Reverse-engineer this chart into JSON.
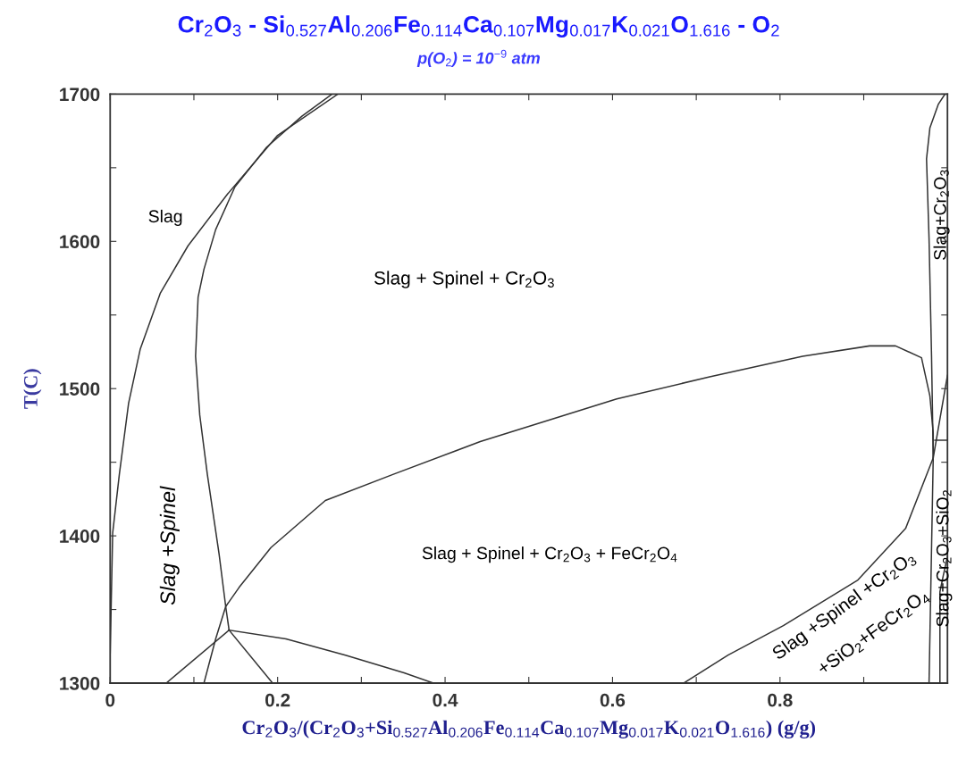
{
  "chart_data": {
    "type": "line",
    "title": "Cr$_{2}$O$_{3}$ - Si$_{0.527}$Al$_{0.206}$Fe$_{0.114}$Ca$_{0.107}$Mg$_{0.017}$K$_{0.021}$O$_{1.616}$ - O$_{2}$",
    "subtitle": "p(O$_{2}$) = 10$^{−9}$ atm",
    "xlabel": "Cr$_{2}$O$_{3}$/(Cr$_{2}$O$_{3}$+Si$_{0.527}$Al$_{0.206}$Fe$_{0.114}$Ca$_{0.107}$Mg$_{0.017}$K$_{0.021}$O$_{1.616}$) (g/g)",
    "ylabel": "T(C)",
    "xlim": [
      0,
      1
    ],
    "ylim": [
      1300,
      1700
    ],
    "xticks": [
      0,
      {
        "value": 0.1,
        "label": null
      },
      0.2,
      {
        "value": 0.3,
        "label": null
      },
      0.4,
      {
        "value": 0.5,
        "label": null
      },
      0.6,
      {
        "value": 0.7,
        "label": null
      },
      0.8,
      {
        "value": 0.9,
        "label": null
      }
    ],
    "yticks": [
      1300,
      {
        "value": 1350,
        "label": null
      },
      1400,
      {
        "value": 1450,
        "label": null
      },
      1500,
      {
        "value": 1550,
        "label": null
      },
      1600,
      {
        "value": 1650,
        "label": null
      },
      1700
    ],
    "grid": false,
    "marker": "none",
    "line_style": "solid",
    "series": [
      {
        "color": "#333333",
        "x": [
          0,
          0.003,
          0.011,
          0.022,
          0.036,
          0.06,
          0.093,
          0.14,
          0.2,
          0.272
        ],
        "values": [
          1320,
          1402,
          1442,
          1490,
          1527,
          1565,
          1597,
          1632,
          1672,
          1700
        ]
      },
      {
        "color": "#333333",
        "x": [
          0.265,
          0.229,
          0.187,
          0.149,
          0.126,
          0.112,
          0.105,
          0.102,
          0.107,
          0.116,
          0.13,
          0.138,
          0.142
        ],
        "values": [
          1700,
          1685,
          1664,
          1637,
          1608,
          1581,
          1562,
          1522,
          1482,
          1442,
          1388,
          1352,
          1336
        ]
      },
      {
        "color": "#333333",
        "x": [
          0.067,
          0.142
        ],
        "values": [
          1300,
          1336
        ]
      },
      {
        "color": "#333333",
        "x": [
          0.142,
          0.194
        ],
        "values": [
          1336,
          1300
        ]
      },
      {
        "color": "#333333",
        "x": [
          0.142,
          0.21,
          0.281,
          0.351,
          0.386
        ],
        "values": [
          1336,
          1330,
          1319,
          1307,
          1300
        ]
      },
      {
        "color": "#333333",
        "x": [
          0.112,
          0.126,
          0.138,
          0.154,
          0.192,
          0.257,
          0.339,
          0.442,
          0.605,
          0.716,
          0.827,
          0.907,
          0.938,
          0.969,
          0.979,
          0.983,
          0.983,
          0.95,
          0.893,
          0.804,
          0.738,
          0.685
        ],
        "values": [
          1300,
          1330,
          1352,
          1365,
          1392,
          1424,
          1442,
          1464,
          1493,
          1508,
          1522,
          1529,
          1529,
          1521,
          1495,
          1470,
          1453,
          1405,
          1370,
          1339,
          1319,
          1300
        ]
      },
      {
        "color": "#333333",
        "x": [
          0.978,
          0.983,
          0.981,
          0.978,
          0.975,
          0.979,
          0.989,
          0.997
        ],
        "values": [
          1300,
          1453,
          1522,
          1602,
          1656,
          1677,
          1693,
          1700
        ]
      },
      {
        "color": "#333333",
        "x": [
          0.983,
          1.0
        ],
        "values": [
          1453,
          1509
        ]
      },
      {
        "color": "#333333",
        "x": [
          0.985,
          1.0
        ],
        "values": [
          1465,
          1465
        ]
      },
      {
        "color": "#333333",
        "x": [
          0.991,
          0.991,
          0.995,
          1.0
        ],
        "values": [
          1300,
          1362,
          1373,
          1386
        ]
      }
    ],
    "annotations": [
      "Slag",
      "Slag + Spinel + Cr$_{2}$O$_{3}$",
      "Slag +Spinel",
      "Slag + Spinel + Cr$_{2}$O$_{3}$ + FeCr$_{2}$O$_{4}$",
      "Slag +Spinel +Cr$_{2}$O$_{3}$",
      "+SiO$_{2}$+FeCr$_{2}$O$_{4}$",
      "Slag+Cr$_{2}$O$_{3}$",
      "Slag+Cr$_{2}$O$_{3}$+SiO$_{2}$"
    ]
  }
}
